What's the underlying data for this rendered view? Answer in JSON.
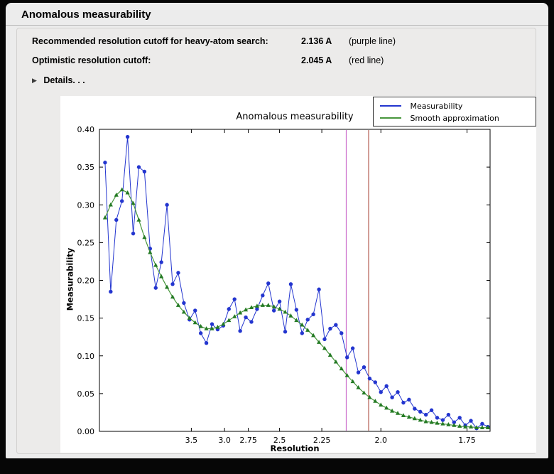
{
  "header": {
    "title": "Anomalous measurability"
  },
  "info": {
    "rows": [
      {
        "label": "Recommended resolution cutoff for heavy-atom search:",
        "value": "2.136 A",
        "note": "(purple line)"
      },
      {
        "label": "Optimistic resolution cutoff:",
        "value": "2.045 A",
        "note": "(red line)"
      }
    ],
    "disclosure_glyph": "▶",
    "disclosure_icon": "right-triangle",
    "details_label": "Details. . ."
  },
  "chart_data": {
    "type": "line",
    "title": "Anomalous measurability",
    "xlabel": "Resolution",
    "ylabel": "Measurability",
    "x_axis": {
      "scale": "inverse_d_squared",
      "max_inv_d_sq": 0.347,
      "ticks": [
        {
          "d": 3.5,
          "label": "3.5"
        },
        {
          "d": 3.0,
          "label": "3.0"
        },
        {
          "d": 2.75,
          "label": "2.75"
        },
        {
          "d": 2.5,
          "label": "2.5"
        },
        {
          "d": 2.25,
          "label": "2.25"
        },
        {
          "d": 2.0,
          "label": "2.0"
        },
        {
          "d": 1.75,
          "label": "1.75"
        }
      ]
    },
    "y_axis": {
      "range": [
        0.0,
        0.4
      ],
      "ticks": [
        "0.00",
        "0.05",
        "0.10",
        "0.15",
        "0.20",
        "0.25",
        "0.30",
        "0.35",
        "0.40"
      ]
    },
    "legend": [
      {
        "name": "Measurability",
        "color": "#2335cf"
      },
      {
        "name": "Smooth approximation",
        "color": "#48963c"
      }
    ],
    "legend_position": "top-right",
    "grid": false,
    "vlines": [
      {
        "resolution": 2.136,
        "color": "#c355c3",
        "note": "purple line"
      },
      {
        "resolution": 2.045,
        "color": "#a53c2e",
        "note": "red line"
      }
    ],
    "x_inv_d_sq": [
      0.005,
      0.01,
      0.015,
      0.02,
      0.025,
      0.03,
      0.035,
      0.04,
      0.045,
      0.05,
      0.055,
      0.06,
      0.065,
      0.07,
      0.075,
      0.08,
      0.085,
      0.09,
      0.095,
      0.1,
      0.105,
      0.11,
      0.115,
      0.12,
      0.125,
      0.13,
      0.135,
      0.14,
      0.145,
      0.15,
      0.155,
      0.16,
      0.165,
      0.17,
      0.175,
      0.18,
      0.185,
      0.19,
      0.195,
      0.2,
      0.205,
      0.21,
      0.215,
      0.22,
      0.225,
      0.23,
      0.235,
      0.24,
      0.245,
      0.25,
      0.255,
      0.26,
      0.265,
      0.27,
      0.275,
      0.28,
      0.285,
      0.29,
      0.295,
      0.3,
      0.305,
      0.31,
      0.315,
      0.32,
      0.325,
      0.33,
      0.335,
      0.34,
      0.345
    ],
    "series": [
      {
        "name": "Measurability",
        "marker": "circle",
        "color": "#2335cf",
        "values": [
          0.356,
          0.185,
          0.28,
          0.305,
          0.39,
          0.262,
          0.35,
          0.344,
          0.242,
          0.19,
          0.224,
          0.3,
          0.195,
          0.21,
          0.17,
          0.148,
          0.16,
          0.13,
          0.117,
          0.142,
          0.135,
          0.14,
          0.162,
          0.175,
          0.133,
          0.151,
          0.145,
          0.162,
          0.18,
          0.196,
          0.16,
          0.172,
          0.132,
          0.195,
          0.161,
          0.13,
          0.148,
          0.155,
          0.188,
          0.122,
          0.136,
          0.141,
          0.13,
          0.098,
          0.11,
          0.078,
          0.085,
          0.07,
          0.065,
          0.052,
          0.06,
          0.045,
          0.052,
          0.038,
          0.042,
          0.03,
          0.026,
          0.022,
          0.028,
          0.018,
          0.015,
          0.022,
          0.012,
          0.018,
          0.008,
          0.014,
          0.004,
          0.01,
          0.006
        ]
      },
      {
        "name": "Smooth approximation",
        "marker": "triangle",
        "color": "#48963c",
        "marker_color": "#247a24",
        "values": [
          0.283,
          0.3,
          0.313,
          0.32,
          0.316,
          0.302,
          0.28,
          0.257,
          0.237,
          0.22,
          0.205,
          0.191,
          0.178,
          0.167,
          0.158,
          0.15,
          0.144,
          0.139,
          0.136,
          0.136,
          0.138,
          0.142,
          0.147,
          0.152,
          0.157,
          0.161,
          0.164,
          0.166,
          0.167,
          0.167,
          0.165,
          0.162,
          0.158,
          0.153,
          0.147,
          0.141,
          0.134,
          0.127,
          0.118,
          0.11,
          0.101,
          0.092,
          0.083,
          0.074,
          0.066,
          0.058,
          0.051,
          0.045,
          0.04,
          0.035,
          0.031,
          0.027,
          0.024,
          0.021,
          0.019,
          0.017,
          0.015,
          0.013,
          0.012,
          0.011,
          0.01,
          0.009,
          0.008,
          0.007,
          0.006,
          0.006,
          0.005,
          0.005,
          0.005
        ]
      }
    ]
  }
}
